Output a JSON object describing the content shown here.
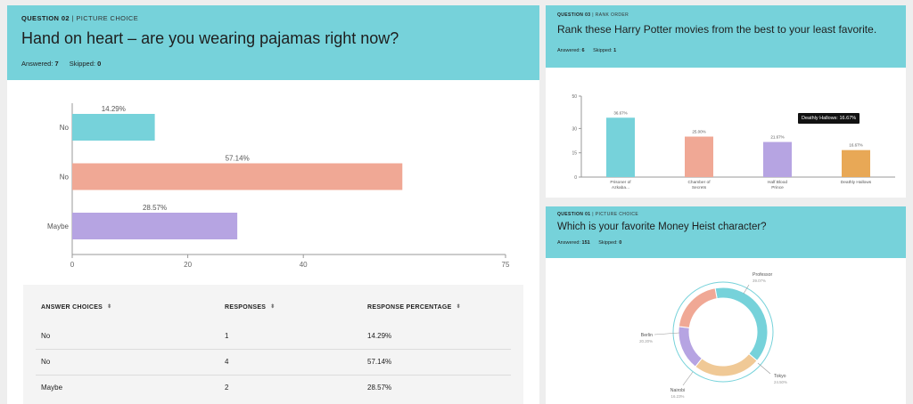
{
  "card1": {
    "qnum": "QUESTION 02",
    "qtype": "PICTURE CHOICE",
    "title": "Hand on heart – are you wearing pajamas right now?",
    "answered_label": "Answered:",
    "answered": "7",
    "skipped_label": "Skipped:",
    "skipped": "0"
  },
  "table": {
    "headers": [
      "ANSWER CHOICES",
      "RESPONSES",
      "RESPONSE PERCENTAGE"
    ],
    "sort_icon": "⬍",
    "rows": [
      {
        "choice": "No",
        "responses": "1",
        "percentage": "14.29%"
      },
      {
        "choice": "No",
        "responses": "4",
        "percentage": "57.14%"
      },
      {
        "choice": "Maybe",
        "responses": "2",
        "percentage": "28.57%"
      }
    ]
  },
  "card2": {
    "qnum": "QUESTION 03",
    "qtype": "RANK ORDER",
    "title": "Rank these Harry Potter movies from the best to your least favorite.",
    "answered_label": "Answered:",
    "answered": "6",
    "skipped_label": "Skipped:",
    "skipped": "1",
    "tooltip": "Deathly Hallows: 16.67%"
  },
  "card3": {
    "qnum": "QUESTION 01",
    "qtype": "PICTURE CHOICE",
    "title": "Which is your favorite Money Heist character?",
    "answered_label": "Answered:",
    "answered": "151",
    "skipped_label": "Skipped:",
    "skipped": "0"
  },
  "chart_data": [
    {
      "type": "bar",
      "orientation": "horizontal",
      "categories": [
        "No",
        "No",
        "Maybe"
      ],
      "values": [
        14.29,
        57.14,
        28.57
      ],
      "value_labels": [
        "14.29%",
        "57.14%",
        "28.57%"
      ],
      "colors": [
        "#76d2da",
        "#f0a895",
        "#b6a4e2"
      ],
      "xlim": [
        0,
        75
      ],
      "xticks": [
        0,
        20,
        40,
        75
      ]
    },
    {
      "type": "bar",
      "categories": [
        [
          "Prisoner of",
          "Azkaba..."
        ],
        [
          "Chamber of",
          "Secrets"
        ],
        [
          "Half Blood",
          "Prince"
        ],
        [
          "Deathly Hallows"
        ]
      ],
      "values": [
        36.67,
        25.0,
        21.67,
        16.67
      ],
      "value_labels": [
        "36.67%",
        "25.00%",
        "21.67%",
        "16.67%"
      ],
      "colors": [
        "#76d2da",
        "#f0a895",
        "#b6a4e2",
        "#e8a856"
      ],
      "ylim": [
        0,
        50
      ],
      "yticks": [
        0,
        15,
        30,
        50
      ]
    },
    {
      "type": "pie",
      "style": "donut",
      "labels": [
        "Professor",
        "Tokyo",
        "Nairobi",
        "Berlin"
      ],
      "values": [
        39.07,
        24.5,
        16.23,
        20.2
      ],
      "value_labels": [
        "39.07%",
        "24.50%",
        "16.23%",
        "20.20%"
      ],
      "colors": [
        "#76d2da",
        "#f0c996",
        "#b6a4e2",
        "#f0a895"
      ]
    }
  ]
}
